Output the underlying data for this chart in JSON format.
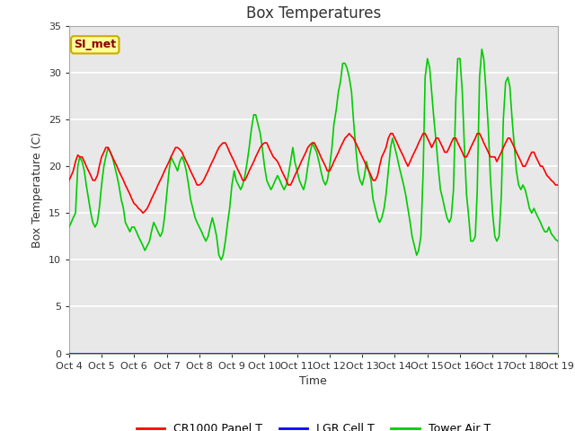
{
  "title": "Box Temperatures",
  "xlabel": "Time",
  "ylabel": "Box Temperature (C)",
  "ylim": [
    0,
    35
  ],
  "xlim": [
    0,
    15
  ],
  "x_tick_labels": [
    "Oct 4",
    "Oct 5",
    "Oct 6",
    "Oct 7",
    "Oct 8",
    "Oct 9",
    "Oct 10",
    "Oct 11",
    "Oct 12",
    "Oct 13",
    "Oct 14",
    "Oct 15",
    "Oct 16",
    "Oct 17",
    "Oct 18",
    "Oct 19"
  ],
  "yticks": [
    0,
    5,
    10,
    15,
    20,
    25,
    30,
    35
  ],
  "fig_bg_color": "#ffffff",
  "plot_bg_color": "#e8e8e8",
  "grid_color": "#ffffff",
  "annotation_text": "SI_met",
  "annotation_bg": "#ffff99",
  "annotation_border": "#ccaa00",
  "annotation_text_color": "#880000",
  "legend_entries": [
    "CR1000 Panel T",
    "LGR Cell T",
    "Tower Air T"
  ],
  "legend_colors": [
    "#ff0000",
    "#0000ff",
    "#00cc00"
  ],
  "title_fontsize": 12,
  "axis_label_fontsize": 9,
  "tick_fontsize": 8,
  "line_width": 1.2,
  "red_x": [
    0.0,
    0.07,
    0.13,
    0.2,
    0.27,
    0.33,
    0.4,
    0.47,
    0.53,
    0.6,
    0.67,
    0.73,
    0.8,
    0.87,
    0.93,
    1.0,
    1.07,
    1.13,
    1.2,
    1.27,
    1.33,
    1.4,
    1.47,
    1.53,
    1.6,
    1.67,
    1.73,
    1.8,
    1.87,
    1.93,
    2.0,
    2.07,
    2.13,
    2.2,
    2.27,
    2.33,
    2.4,
    2.47,
    2.53,
    2.6,
    2.67,
    2.73,
    2.8,
    2.87,
    2.93,
    3.0,
    3.07,
    3.13,
    3.2,
    3.27,
    3.33,
    3.4,
    3.47,
    3.53,
    3.6,
    3.67,
    3.73,
    3.8,
    3.87,
    3.93,
    4.0,
    4.07,
    4.13,
    4.2,
    4.27,
    4.33,
    4.4,
    4.47,
    4.53,
    4.6,
    4.67,
    4.73,
    4.8,
    4.87,
    4.93,
    5.0,
    5.07,
    5.13,
    5.2,
    5.27,
    5.33,
    5.4,
    5.47,
    5.53,
    5.6,
    5.67,
    5.73,
    5.8,
    5.87,
    5.93,
    6.0,
    6.07,
    6.13,
    6.2,
    6.27,
    6.33,
    6.4,
    6.47,
    6.53,
    6.6,
    6.67,
    6.73,
    6.8,
    6.87,
    6.93,
    7.0,
    7.07,
    7.13,
    7.2,
    7.27,
    7.33,
    7.4,
    7.47,
    7.53,
    7.6,
    7.67,
    7.73,
    7.8,
    7.87,
    7.93,
    8.0,
    8.07,
    8.13,
    8.2,
    8.27,
    8.33,
    8.4,
    8.47,
    8.53,
    8.6,
    8.67,
    8.73,
    8.8,
    8.87,
    8.93,
    9.0,
    9.07,
    9.13,
    9.2,
    9.27,
    9.33,
    9.4,
    9.47,
    9.53,
    9.6,
    9.67,
    9.73,
    9.8,
    9.87,
    9.93,
    10.0,
    10.07,
    10.13,
    10.2,
    10.27,
    10.33,
    10.4,
    10.47,
    10.53,
    10.6,
    10.67,
    10.73,
    10.8,
    10.87,
    10.93,
    11.0,
    11.07,
    11.13,
    11.2,
    11.27,
    11.33,
    11.4,
    11.47,
    11.53,
    11.6,
    11.67,
    11.73,
    11.8,
    11.87,
    11.93,
    12.0,
    12.07,
    12.13,
    12.2,
    12.27,
    12.33,
    12.4,
    12.47,
    12.53,
    12.6,
    12.67,
    12.73,
    12.8,
    12.87,
    12.93,
    13.0,
    13.07,
    13.13,
    13.2,
    13.27,
    13.33,
    13.4,
    13.47,
    13.53,
    13.6,
    13.67,
    13.73,
    13.8,
    13.87,
    13.93,
    14.0,
    14.07,
    14.13,
    14.2,
    14.27,
    14.33,
    14.4,
    14.47,
    14.53,
    14.6,
    14.67,
    14.73,
    14.8,
    14.87,
    14.93,
    15.0
  ],
  "red_y": [
    18.5,
    19.0,
    19.5,
    20.5,
    21.2,
    21.0,
    21.0,
    20.5,
    20.0,
    19.5,
    19.0,
    18.5,
    18.5,
    19.0,
    20.0,
    21.0,
    21.5,
    22.0,
    22.0,
    21.5,
    21.0,
    20.5,
    20.0,
    19.5,
    19.0,
    18.5,
    18.0,
    17.5,
    17.0,
    16.5,
    16.0,
    15.8,
    15.5,
    15.3,
    15.0,
    15.2,
    15.5,
    16.0,
    16.5,
    17.0,
    17.5,
    18.0,
    18.5,
    19.0,
    19.5,
    20.0,
    20.5,
    21.0,
    21.5,
    22.0,
    22.0,
    21.8,
    21.5,
    21.0,
    20.5,
    20.0,
    19.5,
    19.0,
    18.5,
    18.0,
    18.0,
    18.2,
    18.5,
    19.0,
    19.5,
    20.0,
    20.5,
    21.0,
    21.5,
    22.0,
    22.3,
    22.5,
    22.5,
    22.0,
    21.5,
    21.0,
    20.5,
    20.0,
    19.5,
    19.0,
    18.5,
    18.5,
    19.0,
    19.5,
    20.0,
    20.5,
    21.0,
    21.5,
    22.0,
    22.3,
    22.5,
    22.5,
    22.0,
    21.5,
    21.0,
    20.8,
    20.5,
    20.0,
    19.5,
    19.0,
    18.5,
    18.0,
    18.0,
    18.5,
    19.0,
    19.5,
    20.0,
    20.5,
    21.0,
    21.5,
    22.0,
    22.3,
    22.5,
    22.5,
    22.0,
    21.5,
    21.0,
    20.5,
    20.0,
    19.5,
    19.5,
    20.0,
    20.5,
    21.0,
    21.5,
    22.0,
    22.5,
    23.0,
    23.2,
    23.5,
    23.2,
    23.0,
    22.5,
    22.0,
    21.5,
    21.0,
    20.5,
    20.0,
    19.5,
    19.0,
    18.5,
    18.5,
    19.0,
    20.0,
    21.0,
    21.5,
    22.0,
    23.0,
    23.5,
    23.5,
    23.0,
    22.5,
    22.0,
    21.5,
    21.0,
    20.5,
    20.0,
    20.5,
    21.0,
    21.5,
    22.0,
    22.5,
    23.0,
    23.5,
    23.5,
    23.0,
    22.5,
    22.0,
    22.5,
    23.0,
    23.0,
    22.5,
    22.0,
    21.5,
    21.5,
    22.0,
    22.5,
    23.0,
    23.0,
    22.5,
    22.0,
    21.5,
    21.0,
    21.0,
    21.5,
    22.0,
    22.5,
    23.0,
    23.5,
    23.5,
    23.0,
    22.5,
    22.0,
    21.5,
    21.0,
    21.0,
    21.0,
    20.5,
    21.0,
    21.5,
    22.0,
    22.5,
    23.0,
    23.0,
    22.5,
    22.0,
    21.5,
    21.0,
    20.5,
    20.0,
    20.0,
    20.5,
    21.0,
    21.5,
    21.5,
    21.0,
    20.5,
    20.0,
    20.0,
    19.5,
    19.0,
    18.8,
    18.5,
    18.3,
    18.0,
    18.0
  ],
  "green_x": [
    0.0,
    0.07,
    0.13,
    0.2,
    0.27,
    0.33,
    0.4,
    0.47,
    0.53,
    0.6,
    0.67,
    0.73,
    0.8,
    0.87,
    0.93,
    1.0,
    1.07,
    1.13,
    1.2,
    1.27,
    1.33,
    1.4,
    1.47,
    1.53,
    1.6,
    1.67,
    1.73,
    1.8,
    1.87,
    1.93,
    2.0,
    2.07,
    2.13,
    2.2,
    2.27,
    2.33,
    2.4,
    2.47,
    2.53,
    2.6,
    2.67,
    2.73,
    2.8,
    2.87,
    2.93,
    3.0,
    3.07,
    3.13,
    3.2,
    3.27,
    3.33,
    3.4,
    3.47,
    3.53,
    3.6,
    3.67,
    3.73,
    3.8,
    3.87,
    3.93,
    4.0,
    4.07,
    4.13,
    4.2,
    4.27,
    4.33,
    4.4,
    4.47,
    4.53,
    4.6,
    4.67,
    4.73,
    4.8,
    4.87,
    4.93,
    5.0,
    5.07,
    5.13,
    5.2,
    5.27,
    5.33,
    5.4,
    5.47,
    5.53,
    5.6,
    5.67,
    5.73,
    5.8,
    5.87,
    5.93,
    6.0,
    6.07,
    6.13,
    6.2,
    6.27,
    6.33,
    6.4,
    6.47,
    6.53,
    6.6,
    6.67,
    6.73,
    6.8,
    6.87,
    6.93,
    7.0,
    7.07,
    7.13,
    7.2,
    7.27,
    7.33,
    7.4,
    7.47,
    7.53,
    7.6,
    7.67,
    7.73,
    7.8,
    7.87,
    7.93,
    8.0,
    8.07,
    8.13,
    8.2,
    8.27,
    8.33,
    8.4,
    8.47,
    8.53,
    8.6,
    8.67,
    8.73,
    8.8,
    8.87,
    8.93,
    9.0,
    9.07,
    9.13,
    9.2,
    9.27,
    9.33,
    9.4,
    9.47,
    9.53,
    9.6,
    9.67,
    9.73,
    9.8,
    9.87,
    9.93,
    10.0,
    10.07,
    10.13,
    10.2,
    10.27,
    10.33,
    10.4,
    10.47,
    10.53,
    10.6,
    10.67,
    10.73,
    10.8,
    10.87,
    10.93,
    11.0,
    11.07,
    11.13,
    11.2,
    11.27,
    11.33,
    11.4,
    11.47,
    11.53,
    11.6,
    11.67,
    11.73,
    11.8,
    11.87,
    11.93,
    12.0,
    12.07,
    12.13,
    12.2,
    12.27,
    12.33,
    12.4,
    12.47,
    12.53,
    12.6,
    12.67,
    12.73,
    12.8,
    12.87,
    12.93,
    13.0,
    13.07,
    13.13,
    13.2,
    13.27,
    13.33,
    13.4,
    13.47,
    13.53,
    13.6,
    13.67,
    13.73,
    13.8,
    13.87,
    13.93,
    14.0,
    14.07,
    14.13,
    14.2,
    14.27,
    14.33,
    14.4,
    14.47,
    14.53,
    14.6,
    14.67,
    14.73,
    14.8,
    14.87,
    14.93,
    15.0
  ],
  "green_y": [
    13.5,
    14.0,
    14.5,
    15.0,
    20.0,
    21.0,
    20.5,
    19.5,
    18.0,
    16.5,
    15.0,
    14.0,
    13.5,
    14.0,
    15.5,
    18.0,
    20.0,
    21.0,
    22.0,
    21.5,
    21.0,
    20.0,
    19.0,
    18.0,
    16.5,
    15.5,
    14.0,
    13.5,
    13.0,
    13.5,
    13.5,
    13.0,
    12.5,
    12.0,
    11.5,
    11.0,
    11.5,
    12.0,
    13.0,
    14.0,
    13.5,
    13.0,
    12.5,
    13.0,
    14.5,
    17.0,
    19.5,
    21.0,
    20.5,
    20.0,
    19.5,
    20.5,
    21.0,
    20.5,
    19.5,
    18.0,
    16.5,
    15.5,
    14.5,
    14.0,
    13.5,
    13.0,
    12.5,
    12.0,
    12.5,
    13.5,
    14.5,
    13.5,
    12.5,
    10.5,
    10.0,
    10.5,
    12.0,
    14.0,
    15.5,
    18.0,
    19.5,
    18.5,
    18.0,
    17.5,
    18.0,
    19.0,
    20.5,
    22.0,
    24.0,
    25.5,
    25.5,
    24.5,
    23.5,
    22.0,
    20.0,
    18.5,
    18.0,
    17.5,
    18.0,
    18.5,
    19.0,
    18.5,
    18.0,
    17.5,
    18.0,
    19.0,
    20.5,
    22.0,
    20.5,
    19.5,
    18.5,
    18.0,
    17.5,
    18.5,
    20.0,
    21.5,
    22.5,
    22.0,
    21.5,
    20.5,
    19.5,
    18.5,
    18.0,
    18.5,
    20.0,
    22.0,
    24.5,
    26.0,
    28.0,
    29.0,
    31.0,
    31.0,
    30.5,
    29.5,
    28.0,
    25.0,
    22.0,
    19.5,
    18.5,
    18.0,
    19.0,
    20.5,
    19.5,
    18.5,
    16.5,
    15.5,
    14.5,
    14.0,
    14.5,
    15.5,
    17.0,
    19.5,
    22.0,
    23.0,
    22.0,
    21.0,
    20.0,
    19.0,
    18.0,
    17.0,
    15.5,
    14.0,
    12.5,
    11.5,
    10.5,
    11.0,
    12.5,
    19.5,
    29.5,
    31.5,
    30.5,
    28.0,
    25.0,
    22.5,
    20.0,
    17.5,
    16.5,
    15.5,
    14.5,
    14.0,
    14.5,
    17.5,
    27.0,
    31.5,
    31.5,
    28.0,
    22.5,
    17.0,
    14.5,
    12.0,
    12.0,
    12.5,
    17.5,
    29.5,
    32.5,
    31.5,
    28.0,
    24.0,
    19.0,
    15.0,
    12.5,
    12.0,
    12.5,
    17.0,
    25.0,
    29.0,
    29.5,
    28.5,
    25.0,
    22.0,
    19.5,
    18.0,
    17.5,
    18.0,
    17.5,
    16.5,
    15.5,
    15.0,
    15.5,
    15.0,
    14.5,
    14.0,
    13.5,
    13.0,
    13.0,
    13.5,
    12.8,
    12.5,
    12.2,
    12.0
  ]
}
